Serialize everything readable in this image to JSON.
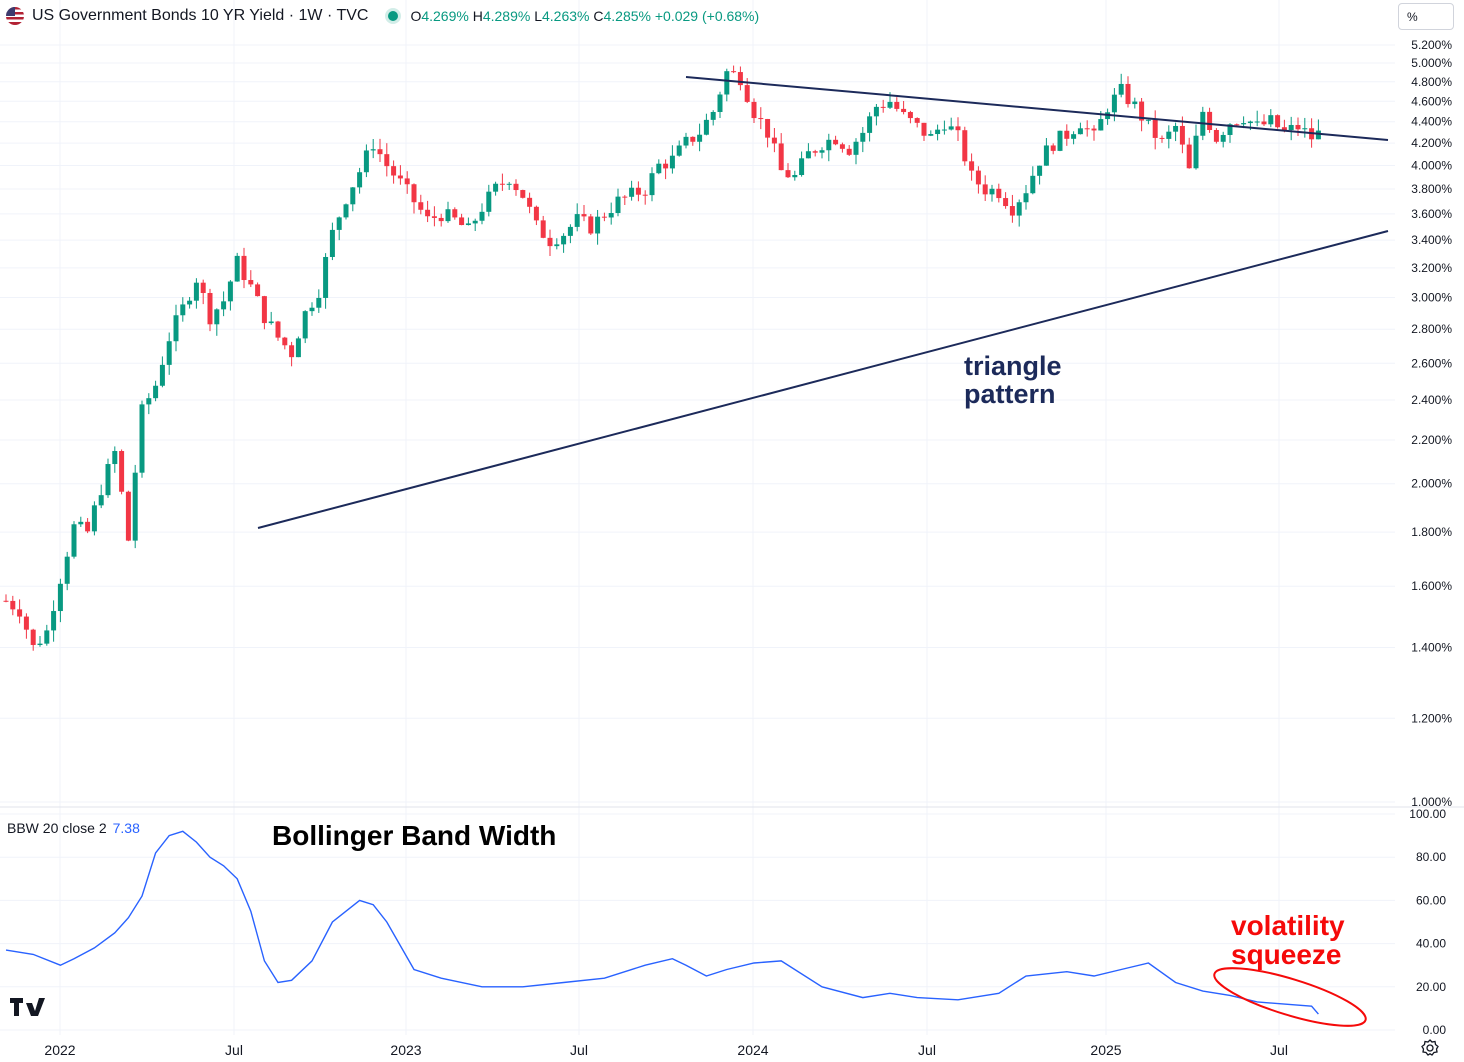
{
  "header": {
    "title": "US Government Bonds 10 YR Yield · 1W · TVC",
    "open_label": "O",
    "open": "4.269%",
    "high_label": "H",
    "high": "4.289%",
    "low_label": "L",
    "low": "4.263%",
    "close_label": "C",
    "close": "4.285%",
    "change": "+0.029 (+0.68%)"
  },
  "unit_label": "%",
  "indicator": {
    "label": "BBW 20 close 2",
    "value": "7.38"
  },
  "annotations": {
    "triangle_line1": "triangle",
    "triangle_line2": "pattern",
    "bbw_title": "Bollinger Band Width",
    "squeeze_line1": "volatility",
    "squeeze_line2": "squeeze"
  },
  "icons": {
    "flag": "us-flag-icon",
    "status": "market-status-dot-icon",
    "settings": "settings-gear-icon"
  },
  "colors": {
    "up": "#089981",
    "down": "#f23645",
    "bbw_line": "#2962ff",
    "trendline": "#1c2a5a",
    "squeeze": "#f50a0a"
  },
  "chart_data": [
    {
      "type": "candlestick",
      "yscale": "log",
      "ylim": [
        1.0,
        5.2
      ],
      "y_ticks": [
        "5.200%",
        "5.000%",
        "4.800%",
        "4.600%",
        "4.400%",
        "4.200%",
        "4.000%",
        "3.800%",
        "3.600%",
        "3.400%",
        "3.200%",
        "3.000%",
        "2.800%",
        "2.600%",
        "2.400%",
        "2.200%",
        "2.000%",
        "1.800%",
        "1.600%",
        "1.400%",
        "1.200%",
        "1.000%"
      ],
      "x_ticks": [
        "2022",
        "Jul",
        "2023",
        "Jul",
        "2024",
        "Jul",
        "2025",
        "Jul"
      ],
      "series_close_path": [
        [
          0,
          1.55
        ],
        [
          2,
          1.52
        ],
        [
          4,
          1.4
        ],
        [
          6,
          1.45
        ],
        [
          8,
          1.63
        ],
        [
          10,
          1.82
        ],
        [
          12,
          1.8
        ],
        [
          14,
          1.98
        ],
        [
          16,
          2.14
        ],
        [
          18,
          1.77
        ],
        [
          20,
          2.34
        ],
        [
          22,
          2.48
        ],
        [
          24,
          2.75
        ],
        [
          26,
          2.93
        ],
        [
          28,
          3.13
        ],
        [
          30,
          2.88
        ],
        [
          32,
          2.98
        ],
        [
          34,
          3.24
        ],
        [
          36,
          3.07
        ],
        [
          38,
          2.88
        ],
        [
          40,
          2.75
        ],
        [
          42,
          2.66
        ],
        [
          44,
          2.9
        ],
        [
          46,
          3.05
        ],
        [
          48,
          3.45
        ],
        [
          50,
          3.73
        ],
        [
          52,
          3.95
        ],
        [
          54,
          4.2
        ],
        [
          56,
          4.0
        ],
        [
          58,
          3.85
        ],
        [
          60,
          3.7
        ],
        [
          62,
          3.55
        ],
        [
          64,
          3.6
        ],
        [
          66,
          3.55
        ],
        [
          68,
          3.47
        ],
        [
          70,
          3.65
        ],
        [
          72,
          3.8
        ],
        [
          74,
          3.9
        ],
        [
          76,
          3.75
        ],
        [
          78,
          3.5
        ],
        [
          80,
          3.4
        ],
        [
          82,
          3.45
        ],
        [
          84,
          3.55
        ],
        [
          86,
          3.5
        ],
        [
          88,
          3.6
        ],
        [
          90,
          3.7
        ],
        [
          92,
          3.75
        ],
        [
          94,
          3.8
        ],
        [
          96,
          4.0
        ],
        [
          98,
          4.05
        ],
        [
          100,
          4.2
        ],
        [
          102,
          4.3
        ],
        [
          104,
          4.5
        ],
        [
          106,
          4.9
        ],
        [
          108,
          4.85
        ],
        [
          110,
          4.5
        ],
        [
          112,
          4.3
        ],
        [
          114,
          3.95
        ],
        [
          116,
          3.9
        ],
        [
          118,
          4.1
        ],
        [
          120,
          4.2
        ],
        [
          122,
          4.25
        ],
        [
          124,
          4.15
        ],
        [
          126,
          4.3
        ],
        [
          128,
          4.55
        ],
        [
          130,
          4.6
        ],
        [
          132,
          4.45
        ],
        [
          134,
          4.35
        ],
        [
          136,
          4.25
        ],
        [
          138,
          4.4
        ],
        [
          140,
          4.25
        ],
        [
          142,
          3.9
        ],
        [
          144,
          3.8
        ],
        [
          146,
          3.78
        ],
        [
          148,
          3.65
        ],
        [
          150,
          3.8
        ],
        [
          152,
          4.05
        ],
        [
          154,
          4.2
        ],
        [
          156,
          4.28
        ],
        [
          158,
          4.4
        ],
        [
          160,
          4.25
        ],
        [
          162,
          4.55
        ],
        [
          164,
          4.7
        ],
        [
          166,
          4.55
        ],
        [
          168,
          4.35
        ],
        [
          170,
          4.2
        ],
        [
          172,
          4.35
        ],
        [
          174,
          3.95
        ],
        [
          176,
          4.5
        ],
        [
          178,
          4.25
        ],
        [
          180,
          4.4
        ],
        [
          182,
          4.45
        ],
        [
          184,
          4.35
        ],
        [
          186,
          4.4
        ],
        [
          188,
          4.3
        ],
        [
          190,
          4.35
        ],
        [
          192,
          4.25
        ],
        [
          193,
          4.285
        ]
      ],
      "bollinger_band_width": {
        "name": "BBW 20 close 2",
        "ylim": [
          0,
          100
        ],
        "y_ticks": [
          "100.00",
          "80.00",
          "60.00",
          "40.00",
          "20.00",
          "0.00"
        ],
        "x": [
          0,
          4,
          8,
          10,
          13,
          16,
          18,
          20,
          22,
          24,
          26,
          28,
          30,
          32,
          34,
          36,
          38,
          40,
          42,
          45,
          48,
          50,
          52,
          54,
          56,
          60,
          64,
          70,
          76,
          82,
          88,
          94,
          98,
          100,
          103,
          106,
          110,
          114,
          120,
          126,
          130,
          134,
          140,
          146,
          150,
          156,
          160,
          164,
          168,
          172,
          176,
          180,
          184,
          188,
          192,
          193
        ],
        "values": [
          37,
          35,
          30,
          33,
          38,
          45,
          52,
          62,
          82,
          90,
          92,
          87,
          80,
          76,
          70,
          55,
          32,
          22,
          23,
          32,
          50,
          55,
          60,
          58,
          50,
          28,
          24,
          20,
          20,
          22,
          24,
          30,
          33,
          30,
          25,
          28,
          31,
          32,
          20,
          15,
          17,
          15,
          14,
          17,
          25,
          27,
          25,
          28,
          31,
          22,
          18,
          16,
          13,
          12,
          11,
          7.38
        ]
      }
    }
  ]
}
